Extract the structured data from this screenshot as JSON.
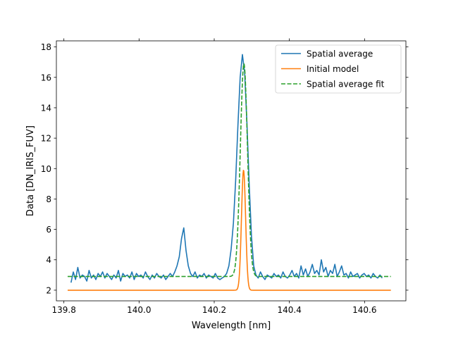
{
  "chart_data": {
    "type": "line",
    "xlabel": "Wavelength [nm]",
    "ylabel": "Data [DN_IRIS_FUV]",
    "xlim": [
      139.78,
      140.71
    ],
    "ylim": [
      1.3,
      18.4
    ],
    "xticks": [
      139.8,
      140.0,
      140.2,
      140.4,
      140.6
    ],
    "xtick_labels": [
      "139.8",
      "140.0",
      "140.2",
      "140.4",
      "140.6"
    ],
    "yticks": [
      2,
      4,
      6,
      8,
      10,
      12,
      14,
      16,
      18
    ],
    "ytick_labels": [
      "2",
      "4",
      "6",
      "8",
      "10",
      "12",
      "14",
      "16",
      "18"
    ],
    "legend_position": "top-right",
    "grid": false,
    "series": [
      {
        "name": "Spatial average",
        "color": "#1f77b4",
        "dash": "solid",
        "x": [
          139.819,
          139.825,
          139.831,
          139.837,
          139.843,
          139.849,
          139.855,
          139.861,
          139.867,
          139.873,
          139.879,
          139.885,
          139.891,
          139.897,
          139.903,
          139.909,
          139.915,
          139.921,
          139.927,
          139.933,
          139.939,
          139.945,
          139.951,
          139.957,
          139.963,
          139.969,
          139.975,
          139.981,
          139.987,
          139.993,
          139.999,
          140.005,
          140.011,
          140.017,
          140.023,
          140.029,
          140.035,
          140.041,
          140.047,
          140.053,
          140.059,
          140.065,
          140.071,
          140.077,
          140.083,
          140.089,
          140.095,
          140.101,
          140.107,
          140.113,
          140.119,
          140.125,
          140.131,
          140.137,
          140.143,
          140.149,
          140.155,
          140.161,
          140.167,
          140.173,
          140.179,
          140.185,
          140.191,
          140.197,
          140.203,
          140.209,
          140.215,
          140.221,
          140.227,
          140.233,
          140.239,
          140.245,
          140.251,
          140.257,
          140.263,
          140.269,
          140.275,
          140.281,
          140.287,
          140.293,
          140.299,
          140.305,
          140.311,
          140.317,
          140.323,
          140.329,
          140.335,
          140.341,
          140.347,
          140.353,
          140.359,
          140.365,
          140.371,
          140.377,
          140.383,
          140.389,
          140.395,
          140.401,
          140.407,
          140.413,
          140.419,
          140.425,
          140.431,
          140.437,
          140.443,
          140.449,
          140.455,
          140.461,
          140.467,
          140.473,
          140.479,
          140.485,
          140.491,
          140.497,
          140.503,
          140.509,
          140.515,
          140.521,
          140.527,
          140.533,
          140.539,
          140.545,
          140.551,
          140.557,
          140.563,
          140.569,
          140.575,
          140.581,
          140.587,
          140.593,
          140.599,
          140.605,
          140.611,
          140.617,
          140.623,
          140.629,
          140.635,
          140.641,
          140.647
        ],
        "y": [
          2.5,
          3.2,
          2.7,
          3.5,
          2.8,
          3.0,
          2.9,
          2.6,
          3.3,
          2.8,
          3.0,
          2.7,
          3.1,
          2.9,
          3.2,
          2.8,
          3.1,
          2.9,
          2.7,
          3.0,
          2.8,
          3.3,
          2.6,
          3.1,
          2.9,
          3.0,
          2.8,
          3.2,
          2.7,
          3.1,
          2.9,
          3.0,
          2.8,
          3.2,
          2.9,
          2.7,
          3.0,
          2.8,
          3.1,
          2.9,
          2.8,
          3.0,
          2.7,
          2.9,
          3.1,
          2.9,
          3.2,
          3.6,
          4.2,
          5.4,
          6.1,
          4.6,
          3.6,
          3.1,
          2.9,
          3.2,
          2.8,
          3.0,
          2.9,
          3.1,
          2.8,
          3.0,
          2.9,
          2.8,
          3.1,
          2.8,
          2.7,
          2.8,
          2.9,
          3.1,
          3.6,
          4.7,
          6.4,
          9.2,
          12.8,
          16.0,
          17.5,
          16.3,
          13.0,
          9.0,
          5.6,
          3.6,
          3.0,
          2.8,
          3.2,
          2.9,
          2.7,
          3.0,
          2.9,
          2.8,
          3.1,
          2.9,
          3.0,
          2.8,
          3.2,
          2.9,
          2.8,
          3.0,
          3.3,
          2.9,
          3.1,
          2.8,
          3.6,
          3.0,
          3.4,
          2.9,
          3.2,
          3.7,
          3.1,
          3.3,
          3.0,
          4.0,
          3.2,
          3.5,
          2.9,
          3.3,
          3.1,
          3.7,
          2.9,
          3.2,
          3.6,
          3.0,
          3.1,
          2.8,
          3.2,
          2.9,
          3.0,
          3.1,
          2.8,
          3.0,
          3.1,
          2.9,
          3.0,
          2.8,
          3.1,
          2.9,
          2.8,
          3.0,
          2.8
        ],
        "y_note": "approximate readings"
      },
      {
        "name": "Initial model",
        "color": "#ff7f0e",
        "dash": "solid",
        "model": {
          "background": 2.0,
          "amplitude": 7.9,
          "center": 140.278,
          "sigma": 0.0055
        }
      },
      {
        "name": "Spatial average fit",
        "color": "#2ca02c",
        "dash": "dashed",
        "model": {
          "background": 2.9,
          "amplitude": 14.0,
          "center": 140.279,
          "sigma": 0.0095
        }
      }
    ],
    "model_x_range": [
      139.81,
      140.67
    ]
  }
}
